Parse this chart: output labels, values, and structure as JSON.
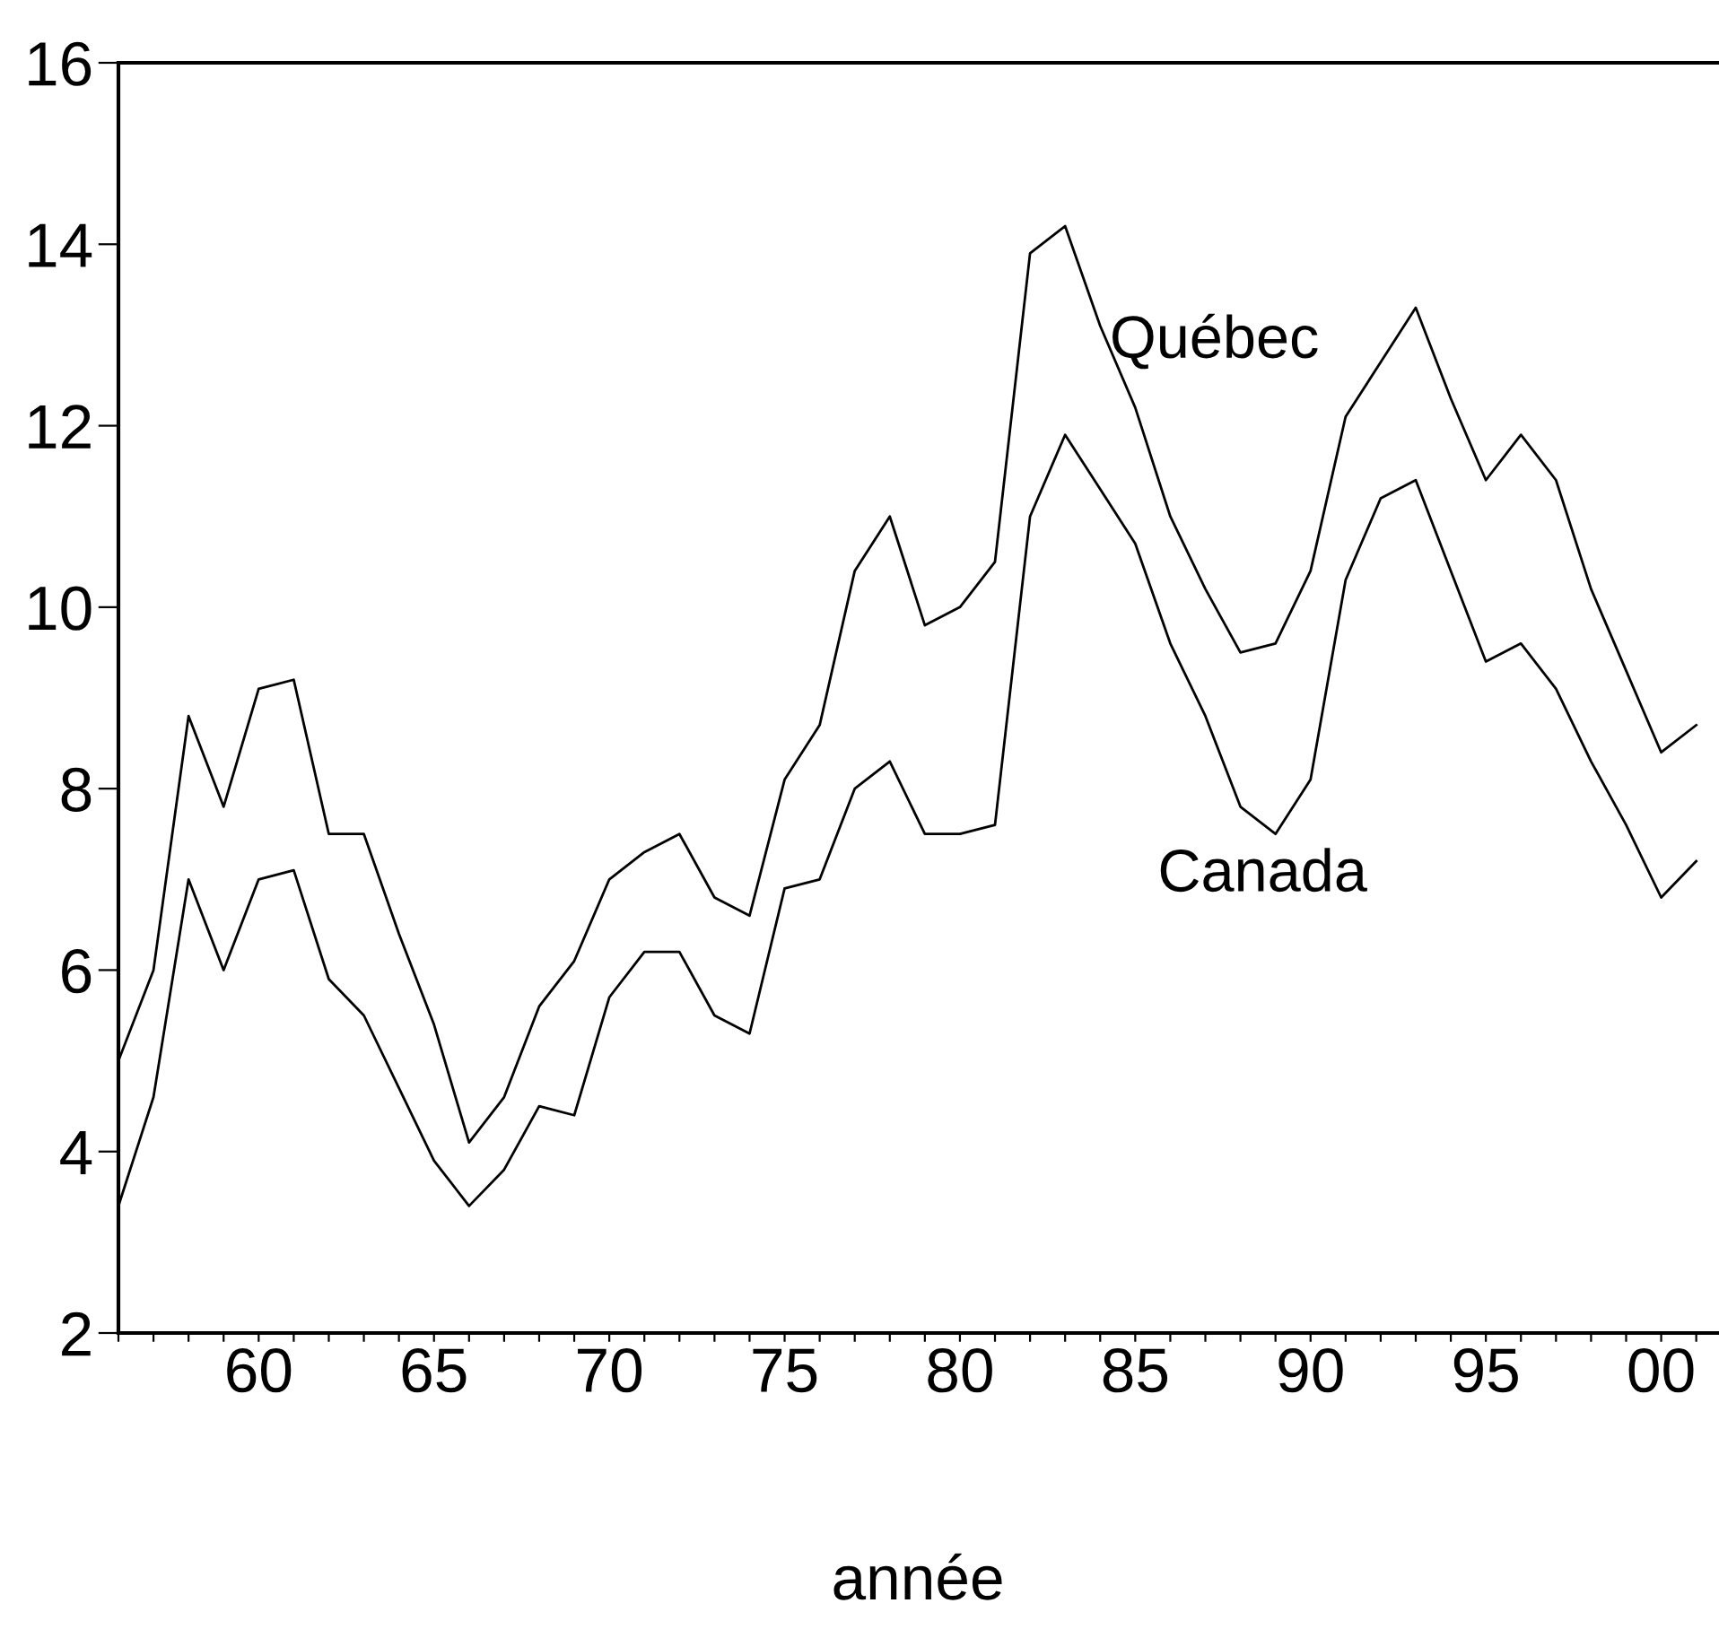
{
  "chart_data": {
    "type": "line",
    "xlabel": "année",
    "x": [
      1956,
      1957,
      1958,
      1959,
      1960,
      1961,
      1962,
      1963,
      1964,
      1965,
      1966,
      1967,
      1968,
      1969,
      1970,
      1971,
      1972,
      1973,
      1974,
      1975,
      1976,
      1977,
      1978,
      1979,
      1980,
      1981,
      1982,
      1983,
      1984,
      1985,
      1986,
      1987,
      1988,
      1989,
      1990,
      1991,
      1992,
      1993,
      1994,
      1995,
      1996,
      1997,
      1998,
      1999,
      2000,
      2001
    ],
    "series": [
      {
        "name": "Québec",
        "color": "#000000",
        "values": [
          5.0,
          6.0,
          8.8,
          7.8,
          9.1,
          9.2,
          7.5,
          7.5,
          6.4,
          5.4,
          4.1,
          4.6,
          5.6,
          6.1,
          7.0,
          7.3,
          7.5,
          6.8,
          6.6,
          8.1,
          8.7,
          10.4,
          11.0,
          9.8,
          10.0,
          10.5,
          13.9,
          14.2,
          13.1,
          12.2,
          11.0,
          10.2,
          9.5,
          9.6,
          10.4,
          12.1,
          12.7,
          13.3,
          12.3,
          11.4,
          11.9,
          11.4,
          10.2,
          9.3,
          8.4,
          8.7
        ]
      },
      {
        "name": "Canada",
        "color": "#000000",
        "values": [
          3.4,
          4.6,
          7.0,
          6.0,
          7.0,
          7.1,
          5.9,
          5.5,
          4.7,
          3.9,
          3.4,
          3.8,
          4.5,
          4.4,
          5.7,
          6.2,
          6.2,
          5.5,
          5.3,
          6.9,
          7.0,
          8.0,
          8.3,
          7.5,
          7.5,
          7.6,
          11.0,
          11.9,
          11.3,
          10.7,
          9.6,
          8.8,
          7.8,
          7.5,
          8.1,
          10.3,
          11.2,
          11.4,
          10.4,
          9.4,
          9.6,
          9.1,
          8.3,
          7.6,
          6.8,
          7.2
        ]
      }
    ],
    "xlim": [
      1956,
      2001.6
    ],
    "xticks": [
      {
        "value": 1956,
        "label": null
      },
      {
        "value": 1957,
        "label": null
      },
      {
        "value": 1958,
        "label": null
      },
      {
        "value": 1959,
        "label": null
      },
      {
        "value": 1960,
        "label": "60"
      },
      {
        "value": 1961,
        "label": null
      },
      {
        "value": 1962,
        "label": null
      },
      {
        "value": 1963,
        "label": null
      },
      {
        "value": 1964,
        "label": null
      },
      {
        "value": 1965,
        "label": "65"
      },
      {
        "value": 1966,
        "label": null
      },
      {
        "value": 1967,
        "label": null
      },
      {
        "value": 1968,
        "label": null
      },
      {
        "value": 1969,
        "label": null
      },
      {
        "value": 1970,
        "label": "70"
      },
      {
        "value": 1971,
        "label": null
      },
      {
        "value": 1972,
        "label": null
      },
      {
        "value": 1973,
        "label": null
      },
      {
        "value": 1974,
        "label": null
      },
      {
        "value": 1975,
        "label": "75"
      },
      {
        "value": 1976,
        "label": null
      },
      {
        "value": 1977,
        "label": null
      },
      {
        "value": 1978,
        "label": null
      },
      {
        "value": 1979,
        "label": null
      },
      {
        "value": 1980,
        "label": "80"
      },
      {
        "value": 1981,
        "label": null
      },
      {
        "value": 1982,
        "label": null
      },
      {
        "value": 1983,
        "label": null
      },
      {
        "value": 1984,
        "label": null
      },
      {
        "value": 1985,
        "label": "85"
      },
      {
        "value": 1986,
        "label": null
      },
      {
        "value": 1987,
        "label": null
      },
      {
        "value": 1988,
        "label": null
      },
      {
        "value": 1989,
        "label": null
      },
      {
        "value": 1990,
        "label": "90"
      },
      {
        "value": 1991,
        "label": null
      },
      {
        "value": 1992,
        "label": null
      },
      {
        "value": 1993,
        "label": null
      },
      {
        "value": 1994,
        "label": null
      },
      {
        "value": 1995,
        "label": "95"
      },
      {
        "value": 1996,
        "label": null
      },
      {
        "value": 1997,
        "label": null
      },
      {
        "value": 1998,
        "label": null
      },
      {
        "value": 1999,
        "label": null
      },
      {
        "value": 2000,
        "label": "00"
      },
      {
        "value": 2001,
        "label": null
      }
    ],
    "ylim": [
      2,
      16
    ],
    "yticks": [
      2,
      4,
      6,
      8,
      10,
      12,
      14,
      16
    ],
    "grid": false,
    "legend": false,
    "line_style": "solid",
    "marker": "none"
  }
}
